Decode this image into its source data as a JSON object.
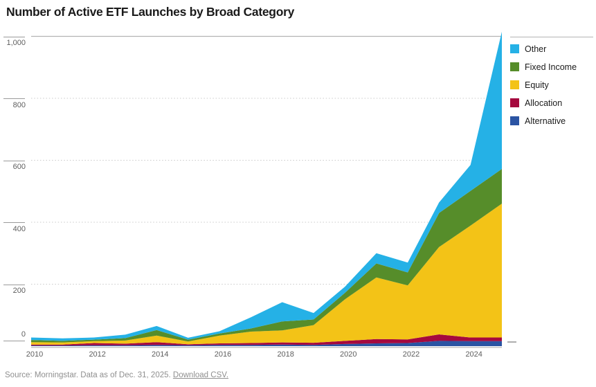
{
  "title": "Number of Active ETF Launches by Broad Category",
  "source": {
    "text": "Source: Morningstar. Data as of Dec. 31, 2025. ",
    "link_text": "Download CSV."
  },
  "legend": [
    {
      "label": "Other",
      "color": "#25b1e6"
    },
    {
      "label": "Fixed Income",
      "color": "#568d2a"
    },
    {
      "label": "Equity",
      "color": "#f3c317"
    },
    {
      "label": "Allocation",
      "color": "#a5093e"
    },
    {
      "label": "Alternative",
      "color": "#2b54a3"
    }
  ],
  "chart_data": {
    "type": "area",
    "stacked": true,
    "title": "Number of Active ETF Launches by Broad Category",
    "xlabel": "",
    "ylabel": "",
    "x": [
      2010,
      2011,
      2012,
      2013,
      2014,
      2015,
      2016,
      2017,
      2018,
      2019,
      2020,
      2021,
      2022,
      2023,
      2024,
      2025
    ],
    "x_tick_labels": [
      "2010",
      "2012",
      "2014",
      "2016",
      "2018",
      "2020",
      "2022",
      "2024"
    ],
    "x_tick_years": [
      2010,
      2012,
      2014,
      2016,
      2018,
      2020,
      2022,
      2024
    ],
    "ylim": [
      0,
      1000
    ],
    "y_ticks": [
      0,
      200,
      400,
      600,
      800,
      1000
    ],
    "y_tick_labels": [
      "0",
      "200",
      "400",
      "600",
      "800",
      "1,000"
    ],
    "grid": "dotted horizontal gridlines at 200/400/600/800, solid top border at 1,000",
    "legend_position": "top-right",
    "stack_order_note": "series listed bottom-to-top of stack",
    "series": [
      {
        "name": "Alternative",
        "color": "#2b54a3",
        "values": [
          2,
          2,
          3,
          3,
          4,
          3,
          4,
          4,
          5,
          4,
          7,
          9,
          10,
          17,
          16,
          16
        ]
      },
      {
        "name": "Allocation",
        "color": "#a5093e",
        "values": [
          3,
          3,
          7,
          5,
          9,
          3,
          5,
          6,
          7,
          7,
          10,
          14,
          12,
          21,
          12,
          12
        ]
      },
      {
        "name": "Equity",
        "color": "#f3c317",
        "values": [
          8,
          7,
          6,
          10,
          21,
          9,
          25,
          37,
          39,
          57,
          134,
          199,
          174,
          282,
          361,
          432
        ]
      },
      {
        "name": "Fixed Income",
        "color": "#568d2a",
        "values": [
          7,
          5,
          5,
          8,
          18,
          6,
          7,
          10,
          29,
          18,
          21,
          45,
          42,
          110,
          112,
          112
        ]
      },
      {
        "name": "Other",
        "color": "#25b1e6",
        "values": [
          8,
          8,
          7,
          11,
          13,
          6,
          7,
          36,
          62,
          21,
          20,
          33,
          32,
          34,
          84,
          443
        ]
      }
    ],
    "totals": [
      28,
      25,
      28,
      37,
      65,
      27,
      48,
      93,
      142,
      107,
      192,
      300,
      270,
      464,
      585,
      1015
    ]
  },
  "axis_colors": {
    "grid": "#c9c9c9",
    "border": "#b3b3b3",
    "tick": "#9a9a9a",
    "label": "#5e5e5e"
  }
}
